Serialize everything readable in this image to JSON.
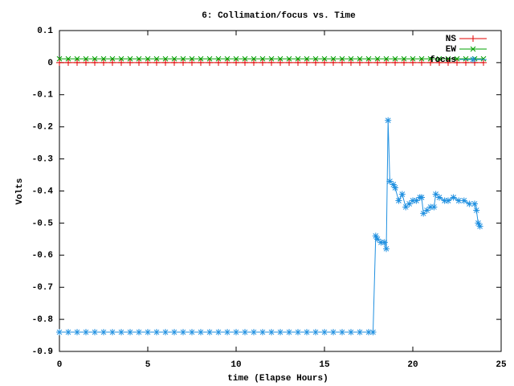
{
  "chart_data": {
    "type": "line",
    "title": "6: Collimation/focus vs. Time",
    "x_label": "time (Elapse Hours)",
    "y_label": "Volts",
    "xlim": [
      0,
      25
    ],
    "xticks": [
      0,
      5,
      10,
      15,
      20,
      25
    ],
    "ylim": [
      -0.9,
      0.1
    ],
    "yticks": [
      0.1,
      0,
      -0.1,
      -0.2,
      -0.3,
      -0.4,
      -0.5,
      -0.6,
      -0.7,
      -0.8,
      -0.9
    ],
    "legend": "top-right",
    "series": [
      {
        "name": "NS",
        "color": "#e00000",
        "marker": "plus",
        "x": [
          0,
          0.5,
          1,
          1.5,
          2,
          2.5,
          3,
          3.5,
          4,
          4.5,
          5,
          5.5,
          6,
          6.5,
          7,
          7.5,
          8,
          8.5,
          9,
          9.5,
          10,
          10.5,
          11,
          11.5,
          12,
          12.5,
          13,
          13.5,
          14,
          14.5,
          15,
          15.5,
          16,
          16.5,
          17,
          17.5,
          18,
          18.5,
          19,
          19.5,
          20,
          20.5,
          21,
          21.5,
          22,
          22.5,
          23,
          23.5,
          24
        ],
        "values": [
          0,
          0,
          0,
          0,
          0,
          0,
          0,
          0,
          0,
          0,
          0,
          0,
          0,
          0,
          0,
          0,
          0,
          0,
          0,
          0,
          0,
          0,
          0,
          0,
          0,
          0,
          0,
          0,
          0,
          0,
          0,
          0,
          0,
          0,
          0,
          0,
          0,
          0,
          0,
          0,
          0,
          0,
          0,
          0,
          0,
          0,
          0,
          0,
          0
        ]
      },
      {
        "name": "EW",
        "color": "#00a000",
        "marker": "cross",
        "x": [
          0,
          0.5,
          1,
          1.5,
          2,
          2.5,
          3,
          3.5,
          4,
          4.5,
          5,
          5.5,
          6,
          6.5,
          7,
          7.5,
          8,
          8.5,
          9,
          9.5,
          10,
          10.5,
          11,
          11.5,
          12,
          12.5,
          13,
          13.5,
          14,
          14.5,
          15,
          15.5,
          16,
          16.5,
          17,
          17.5,
          18,
          18.5,
          19,
          19.5,
          20,
          20.5,
          21,
          21.5,
          22,
          22.5,
          23,
          23.5,
          24
        ],
        "values": [
          0.012,
          0.012,
          0.012,
          0.012,
          0.012,
          0.012,
          0.012,
          0.012,
          0.012,
          0.012,
          0.012,
          0.012,
          0.012,
          0.012,
          0.012,
          0.012,
          0.012,
          0.012,
          0.012,
          0.012,
          0.012,
          0.012,
          0.012,
          0.012,
          0.012,
          0.012,
          0.012,
          0.012,
          0.012,
          0.012,
          0.012,
          0.012,
          0.012,
          0.012,
          0.012,
          0.012,
          0.012,
          0.012,
          0.012,
          0.012,
          0.012,
          0.012,
          0.012,
          0.012,
          0.012,
          0.012,
          0.012,
          0.012,
          0.012
        ]
      },
      {
        "name": "focus",
        "color": "#2090e0",
        "marker": "star",
        "x": [
          0,
          0.5,
          1,
          1.5,
          2,
          2.5,
          3,
          3.5,
          4,
          4.5,
          5,
          5.5,
          6,
          6.5,
          7,
          7.5,
          8,
          8.5,
          9,
          9.5,
          10,
          10.5,
          11,
          11.5,
          12,
          12.5,
          13,
          13.5,
          14,
          14.5,
          15,
          15.5,
          16,
          16.5,
          17,
          17.5,
          17.75,
          17.9,
          18,
          18.2,
          18.4,
          18.5,
          18.6,
          18.7,
          18.9,
          19,
          19.2,
          19.4,
          19.6,
          19.8,
          20,
          20.2,
          20.4,
          20.5,
          20.6,
          20.8,
          21,
          21.2,
          21.3,
          21.5,
          21.8,
          22,
          22.3,
          22.6,
          22.9,
          23.2,
          23.5,
          23.6,
          23.7,
          23.8
        ],
        "values": [
          -0.84,
          -0.84,
          -0.84,
          -0.84,
          -0.84,
          -0.84,
          -0.84,
          -0.84,
          -0.84,
          -0.84,
          -0.84,
          -0.84,
          -0.84,
          -0.84,
          -0.84,
          -0.84,
          -0.84,
          -0.84,
          -0.84,
          -0.84,
          -0.84,
          -0.84,
          -0.84,
          -0.84,
          -0.84,
          -0.84,
          -0.84,
          -0.84,
          -0.84,
          -0.84,
          -0.84,
          -0.84,
          -0.84,
          -0.84,
          -0.84,
          -0.84,
          -0.84,
          -0.54,
          -0.55,
          -0.56,
          -0.56,
          -0.58,
          -0.18,
          -0.37,
          -0.38,
          -0.39,
          -0.43,
          -0.41,
          -0.45,
          -0.44,
          -0.43,
          -0.43,
          -0.42,
          -0.42,
          -0.47,
          -0.46,
          -0.45,
          -0.45,
          -0.41,
          -0.42,
          -0.43,
          -0.43,
          -0.42,
          -0.43,
          -0.43,
          -0.44,
          -0.44,
          -0.46,
          -0.5,
          -0.51
        ]
      }
    ]
  }
}
